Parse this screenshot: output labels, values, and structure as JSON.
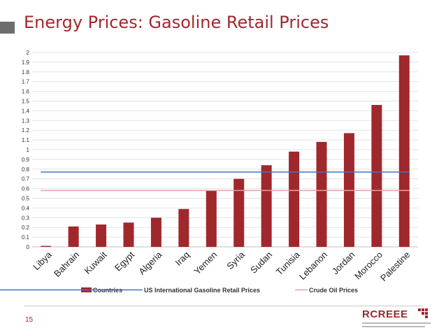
{
  "slide": {
    "title": "Energy Prices: Gasoline Retail Prices",
    "page_number": "15",
    "logo_text": "RCREEE"
  },
  "colors": {
    "accent": "#a0282d",
    "bars": "#a0282d",
    "us_line": "#4472c4",
    "crude_line": "#e6a0a6",
    "grid": "#e3e3e3"
  },
  "chart_data": {
    "type": "bar",
    "categories": [
      "Libya",
      "Bahrain",
      "Kuwait",
      "Egypt",
      "Algeria",
      "Iraq",
      "Yemen",
      "Syria",
      "Sudan",
      "Tunisia",
      "Lebanon",
      "Jordan",
      "Morocco",
      "Palestine"
    ],
    "series": [
      {
        "name": "Countries",
        "type": "bar",
        "values": [
          0.01,
          0.21,
          0.23,
          0.25,
          0.3,
          0.39,
          0.58,
          0.7,
          0.84,
          0.98,
          1.08,
          1.17,
          1.46,
          1.97
        ]
      },
      {
        "name": "US International Gasoline Retail Prices",
        "type": "line",
        "value": 0.77
      },
      {
        "name": "Crude Oil Prices",
        "type": "line",
        "value": 0.58
      }
    ],
    "ylim": [
      0,
      2
    ],
    "yticks": [
      "0",
      "0.1",
      "0.2",
      "0.3",
      "0.4",
      "0.5",
      "0.6",
      "0.7",
      "0.8",
      "0.9",
      "1",
      "1.1",
      "1.2",
      "1.3",
      "1.4",
      "1.5",
      "1.6",
      "1.7",
      "1.8",
      "1.9",
      "2"
    ],
    "grid": true,
    "legend_position": "bottom"
  }
}
